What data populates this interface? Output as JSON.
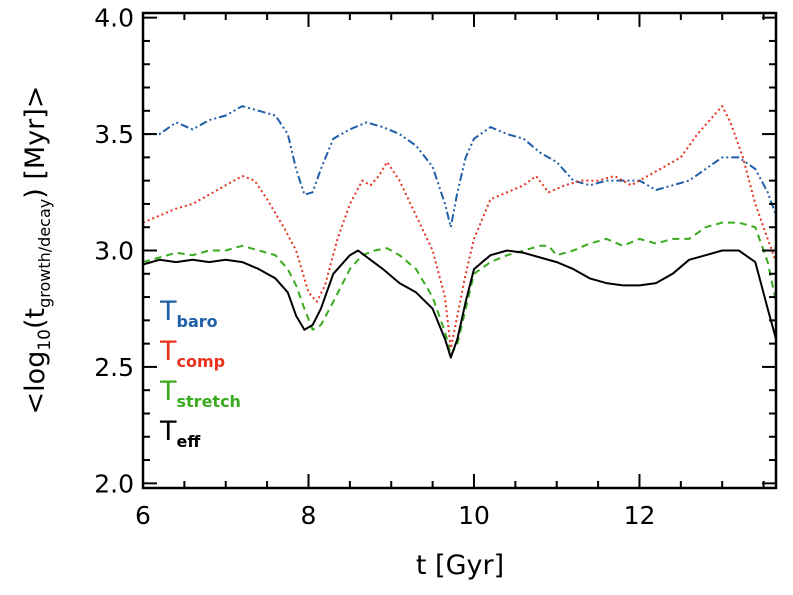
{
  "chart_data": {
    "type": "line",
    "xlabel": "t [Gyr]",
    "ylabel": {
      "prefix": "<log",
      "base": "10",
      "open": "(t",
      "sub": "growth/decay",
      "close": ")  [Myr]>"
    },
    "xlim": [
      6.0,
      13.65
    ],
    "ylim": [
      1.98,
      4.02
    ],
    "xticks": [
      6,
      8,
      10,
      12
    ],
    "xtick_labels": [
      "6",
      "8",
      "10",
      "12"
    ],
    "yticks": [
      2.0,
      2.5,
      3.0,
      3.5,
      4.0
    ],
    "ytick_labels": [
      "2.0",
      "2.5",
      "3.0",
      "3.5",
      "4.0"
    ],
    "legend_position": "lower-left",
    "series": [
      {
        "name": "T_baro",
        "label_main": "T",
        "label_sub": "baro",
        "color": "#1f5fa8",
        "style": "dash-dot-dot",
        "x": [
          6.0,
          6.2,
          6.4,
          6.6,
          6.8,
          7.0,
          7.2,
          7.4,
          7.6,
          7.75,
          7.85,
          7.95,
          8.05,
          8.15,
          8.3,
          8.5,
          8.7,
          8.9,
          9.1,
          9.3,
          9.5,
          9.65,
          9.72,
          9.8,
          9.9,
          10.0,
          10.2,
          10.4,
          10.6,
          10.8,
          11.0,
          11.2,
          11.4,
          11.6,
          11.8,
          12.0,
          12.2,
          12.4,
          12.6,
          12.8,
          13.0,
          13.2,
          13.4,
          13.55,
          13.65
        ],
        "y": [
          3.5,
          3.5,
          3.55,
          3.52,
          3.56,
          3.58,
          3.62,
          3.6,
          3.58,
          3.5,
          3.35,
          3.24,
          3.25,
          3.35,
          3.48,
          3.52,
          3.55,
          3.53,
          3.5,
          3.45,
          3.36,
          3.2,
          3.1,
          3.25,
          3.4,
          3.48,
          3.53,
          3.5,
          3.48,
          3.42,
          3.38,
          3.3,
          3.28,
          3.3,
          3.3,
          3.3,
          3.26,
          3.28,
          3.3,
          3.35,
          3.4,
          3.4,
          3.35,
          3.25,
          3.15
        ]
      },
      {
        "name": "T_comp",
        "label_main": "T",
        "label_sub": "comp",
        "color": "#e8321e",
        "style": "dotted",
        "x": [
          6.0,
          6.2,
          6.4,
          6.6,
          6.8,
          7.0,
          7.2,
          7.35,
          7.5,
          7.7,
          7.85,
          8.0,
          8.1,
          8.2,
          8.35,
          8.5,
          8.65,
          8.75,
          8.85,
          8.95,
          9.1,
          9.3,
          9.5,
          9.65,
          9.72,
          9.8,
          9.9,
          10.0,
          10.2,
          10.4,
          10.6,
          10.75,
          10.9,
          11.1,
          11.3,
          11.5,
          11.7,
          11.9,
          12.1,
          12.3,
          12.5,
          12.7,
          12.9,
          13.0,
          13.1,
          13.25,
          13.4,
          13.55,
          13.65
        ],
        "y": [
          3.12,
          3.15,
          3.18,
          3.2,
          3.24,
          3.28,
          3.32,
          3.3,
          3.22,
          3.1,
          3.0,
          2.82,
          2.78,
          2.85,
          3.05,
          3.2,
          3.3,
          3.28,
          3.32,
          3.38,
          3.3,
          3.15,
          3.0,
          2.8,
          2.58,
          2.72,
          2.9,
          3.05,
          3.22,
          3.25,
          3.28,
          3.32,
          3.25,
          3.28,
          3.3,
          3.3,
          3.32,
          3.28,
          3.32,
          3.36,
          3.4,
          3.5,
          3.58,
          3.62,
          3.55,
          3.4,
          3.2,
          3.05,
          2.95
        ]
      },
      {
        "name": "T_stretch",
        "label_main": "T",
        "label_sub": "stretch",
        "color": "#3aaa1e",
        "style": "dashed",
        "x": [
          6.0,
          6.2,
          6.4,
          6.6,
          6.8,
          7.0,
          7.2,
          7.4,
          7.6,
          7.75,
          7.85,
          7.95,
          8.05,
          8.15,
          8.3,
          8.5,
          8.65,
          8.8,
          8.95,
          9.1,
          9.3,
          9.5,
          9.65,
          9.72,
          9.8,
          9.9,
          10.0,
          10.2,
          10.4,
          10.6,
          10.8,
          10.9,
          11.0,
          11.2,
          11.4,
          11.6,
          11.8,
          12.0,
          12.2,
          12.4,
          12.6,
          12.8,
          13.0,
          13.2,
          13.4,
          13.55,
          13.65
        ],
        "y": [
          2.95,
          2.97,
          2.99,
          2.98,
          3.0,
          3.0,
          3.02,
          3.0,
          2.98,
          2.92,
          2.85,
          2.75,
          2.66,
          2.68,
          2.78,
          2.92,
          2.98,
          3.0,
          3.01,
          2.98,
          2.92,
          2.8,
          2.65,
          2.55,
          2.6,
          2.75,
          2.9,
          2.95,
          2.98,
          3.0,
          3.02,
          3.02,
          2.98,
          3.0,
          3.03,
          3.05,
          3.02,
          3.05,
          3.03,
          3.05,
          3.05,
          3.1,
          3.12,
          3.12,
          3.1,
          2.95,
          2.78
        ]
      },
      {
        "name": "T_eff",
        "label_main": "T",
        "label_sub": "eff",
        "color": "#000000",
        "style": "solid",
        "x": [
          6.0,
          6.2,
          6.4,
          6.6,
          6.8,
          7.0,
          7.2,
          7.4,
          7.6,
          7.75,
          7.85,
          7.95,
          8.05,
          8.15,
          8.3,
          8.5,
          8.6,
          8.75,
          8.9,
          9.1,
          9.3,
          9.5,
          9.65,
          9.72,
          9.8,
          9.9,
          10.0,
          10.2,
          10.4,
          10.6,
          10.8,
          11.0,
          11.2,
          11.4,
          11.6,
          11.8,
          12.0,
          12.2,
          12.4,
          12.6,
          12.8,
          13.0,
          13.2,
          13.4,
          13.55,
          13.65
        ],
        "y": [
          2.94,
          2.96,
          2.95,
          2.96,
          2.95,
          2.96,
          2.95,
          2.92,
          2.88,
          2.82,
          2.72,
          2.66,
          2.68,
          2.75,
          2.9,
          2.98,
          3.0,
          2.96,
          2.92,
          2.86,
          2.82,
          2.75,
          2.62,
          2.54,
          2.62,
          2.78,
          2.92,
          2.98,
          3.0,
          2.99,
          2.97,
          2.95,
          2.92,
          2.88,
          2.86,
          2.85,
          2.85,
          2.86,
          2.9,
          2.96,
          2.98,
          3.0,
          3.0,
          2.95,
          2.75,
          2.62
        ]
      }
    ]
  }
}
